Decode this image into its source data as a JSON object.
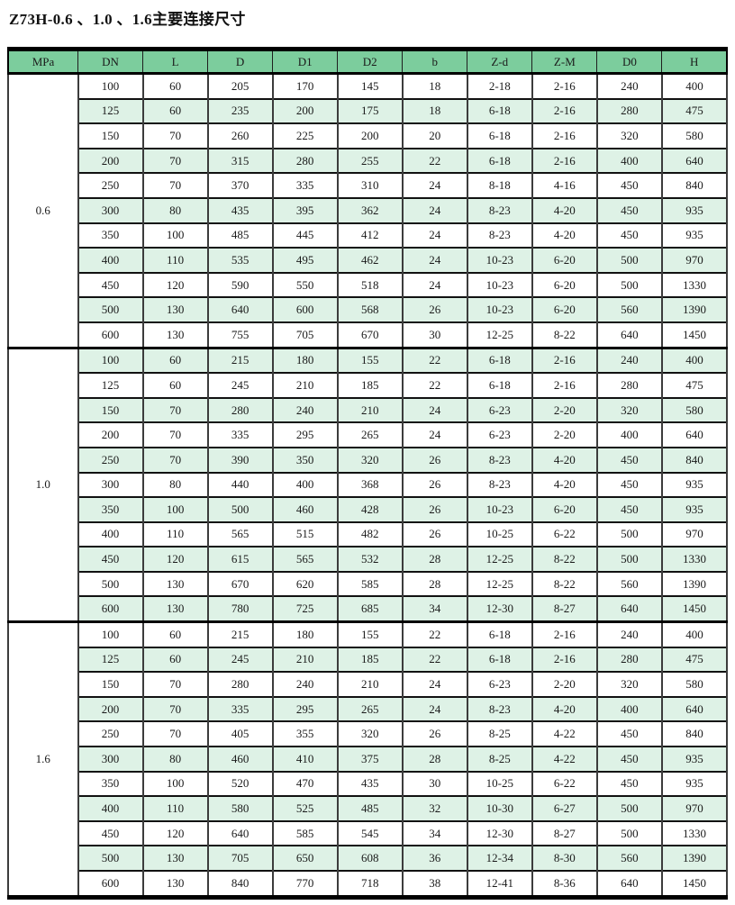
{
  "page": {
    "title": "Z73H-0.6 、1.0 、1.6主要连接尺寸"
  },
  "colors": {
    "header_bg": "#7CCD9D",
    "stripe_bg": "#DEF2E6",
    "border_black": "#000000"
  },
  "table": {
    "headers": [
      "MPa",
      "DN",
      "L",
      "D",
      "D1",
      "D2",
      "b",
      "Z-d",
      "Z-M",
      "D0",
      "H"
    ],
    "sections": [
      {
        "mpa": "0.6",
        "rows": [
          [
            "100",
            "60",
            "205",
            "170",
            "145",
            "18",
            "2-18",
            "2-16",
            "240",
            "400"
          ],
          [
            "125",
            "60",
            "235",
            "200",
            "175",
            "18",
            "6-18",
            "2-16",
            "280",
            "475"
          ],
          [
            "150",
            "70",
            "260",
            "225",
            "200",
            "20",
            "6-18",
            "2-16",
            "320",
            "580"
          ],
          [
            "200",
            "70",
            "315",
            "280",
            "255",
            "22",
            "6-18",
            "2-16",
            "400",
            "640"
          ],
          [
            "250",
            "70",
            "370",
            "335",
            "310",
            "24",
            "8-18",
            "4-16",
            "450",
            "840"
          ],
          [
            "300",
            "80",
            "435",
            "395",
            "362",
            "24",
            "8-23",
            "4-20",
            "450",
            "935"
          ],
          [
            "350",
            "100",
            "485",
            "445",
            "412",
            "24",
            "8-23",
            "4-20",
            "450",
            "935"
          ],
          [
            "400",
            "110",
            "535",
            "495",
            "462",
            "24",
            "10-23",
            "6-20",
            "500",
            "970"
          ],
          [
            "450",
            "120",
            "590",
            "550",
            "518",
            "24",
            "10-23",
            "6-20",
            "500",
            "1330"
          ],
          [
            "500",
            "130",
            "640",
            "600",
            "568",
            "26",
            "10-23",
            "6-20",
            "560",
            "1390"
          ],
          [
            "600",
            "130",
            "755",
            "705",
            "670",
            "30",
            "12-25",
            "8-22",
            "640",
            "1450"
          ]
        ]
      },
      {
        "mpa": "1.0",
        "rows": [
          [
            "100",
            "60",
            "215",
            "180",
            "155",
            "22",
            "6-18",
            "2-16",
            "240",
            "400"
          ],
          [
            "125",
            "60",
            "245",
            "210",
            "185",
            "22",
            "6-18",
            "2-16",
            "280",
            "475"
          ],
          [
            "150",
            "70",
            "280",
            "240",
            "210",
            "24",
            "6-23",
            "2-20",
            "320",
            "580"
          ],
          [
            "200",
            "70",
            "335",
            "295",
            "265",
            "24",
            "6-23",
            "2-20",
            "400",
            "640"
          ],
          [
            "250",
            "70",
            "390",
            "350",
            "320",
            "26",
            "8-23",
            "4-20",
            "450",
            "840"
          ],
          [
            "300",
            "80",
            "440",
            "400",
            "368",
            "26",
            "8-23",
            "4-20",
            "450",
            "935"
          ],
          [
            "350",
            "100",
            "500",
            "460",
            "428",
            "26",
            "10-23",
            "6-20",
            "450",
            "935"
          ],
          [
            "400",
            "110",
            "565",
            "515",
            "482",
            "26",
            "10-25",
            "6-22",
            "500",
            "970"
          ],
          [
            "450",
            "120",
            "615",
            "565",
            "532",
            "28",
            "12-25",
            "8-22",
            "500",
            "1330"
          ],
          [
            "500",
            "130",
            "670",
            "620",
            "585",
            "28",
            "12-25",
            "8-22",
            "560",
            "1390"
          ],
          [
            "600",
            "130",
            "780",
            "725",
            "685",
            "34",
            "12-30",
            "8-27",
            "640",
            "1450"
          ]
        ]
      },
      {
        "mpa": "1.6",
        "rows": [
          [
            "100",
            "60",
            "215",
            "180",
            "155",
            "22",
            "6-18",
            "2-16",
            "240",
            "400"
          ],
          [
            "125",
            "60",
            "245",
            "210",
            "185",
            "22",
            "6-18",
            "2-16",
            "280",
            "475"
          ],
          [
            "150",
            "70",
            "280",
            "240",
            "210",
            "24",
            "6-23",
            "2-20",
            "320",
            "580"
          ],
          [
            "200",
            "70",
            "335",
            "295",
            "265",
            "24",
            "8-23",
            "4-20",
            "400",
            "640"
          ],
          [
            "250",
            "70",
            "405",
            "355",
            "320",
            "26",
            "8-25",
            "4-22",
            "450",
            "840"
          ],
          [
            "300",
            "80",
            "460",
            "410",
            "375",
            "28",
            "8-25",
            "4-22",
            "450",
            "935"
          ],
          [
            "350",
            "100",
            "520",
            "470",
            "435",
            "30",
            "10-25",
            "6-22",
            "450",
            "935"
          ],
          [
            "400",
            "110",
            "580",
            "525",
            "485",
            "32",
            "10-30",
            "6-27",
            "500",
            "970"
          ],
          [
            "450",
            "120",
            "640",
            "585",
            "545",
            "34",
            "12-30",
            "8-27",
            "500",
            "1330"
          ],
          [
            "500",
            "130",
            "705",
            "650",
            "608",
            "36",
            "12-34",
            "8-30",
            "560",
            "1390"
          ],
          [
            "600",
            "130",
            "840",
            "770",
            "718",
            "38",
            "12-41",
            "8-36",
            "640",
            "1450"
          ]
        ]
      }
    ]
  }
}
